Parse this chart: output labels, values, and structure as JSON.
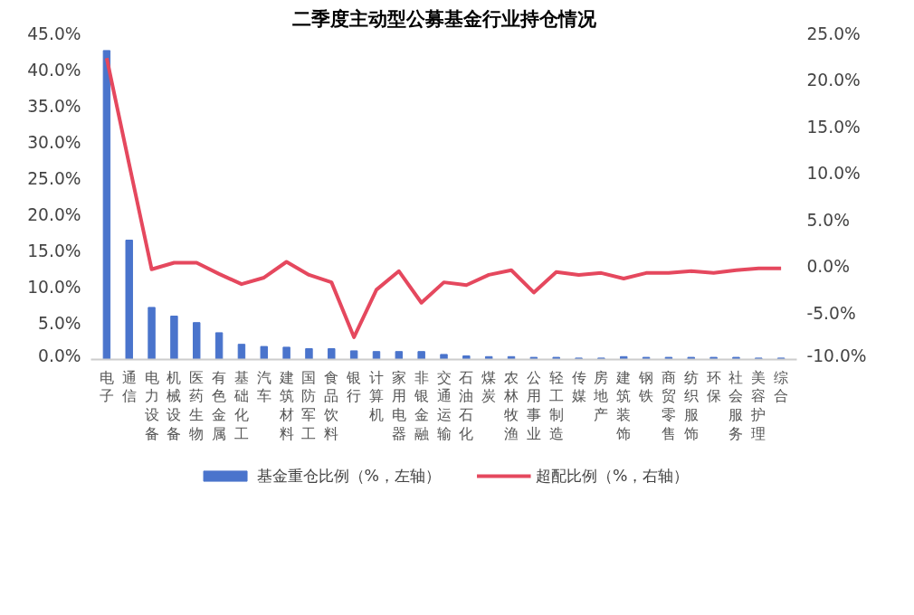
{
  "chart_data": {
    "type": "bar",
    "title": "二季度主动型公募基金行业持仓情况",
    "categories": [
      "电子",
      "通信",
      "电力设备",
      "机械设备",
      "医药生物",
      "有色金属",
      "基础化工",
      "汽车",
      "建筑材料",
      "国防军工",
      "食品饮料",
      "银行",
      "计算机",
      "家用电器",
      "非银金融",
      "交通运输",
      "石油石化",
      "煤炭",
      "农林牧渔",
      "公用事业",
      "轻工制造",
      "传媒",
      "房地产",
      "建筑装饰",
      "钢铁",
      "商贸零售",
      "纺织服饰",
      "环保",
      "社会服务",
      "美容护理",
      "综合"
    ],
    "series": [
      {
        "name": "基金重仓比例（%，左轴）",
        "color": "#4a74cc",
        "values": [
          42.7,
          16.5,
          7.2,
          6.0,
          5.1,
          3.7,
          2.1,
          1.8,
          1.7,
          1.5,
          1.5,
          1.2,
          1.1,
          1.1,
          1.1,
          0.7,
          0.5,
          0.4,
          0.4,
          0.3,
          0.3,
          0.2,
          0.2,
          0.4,
          0.3,
          0.3,
          0.3,
          0.3,
          0.3,
          0.2,
          0.2
        ]
      },
      {
        "name": "超配比例（%，右轴）",
        "type": "line",
        "axis": "y2",
        "color": "#e5485e",
        "values": [
          22.4,
          11.0,
          -0.3,
          0.4,
          0.4,
          -0.8,
          -1.9,
          -1.2,
          0.5,
          -0.9,
          -1.7,
          -7.6,
          -2.5,
          -0.5,
          -3.9,
          -1.7,
          -2.0,
          -0.9,
          -0.4,
          -2.8,
          -0.6,
          -0.9,
          -0.7,
          -1.3,
          -0.7,
          -0.7,
          -0.5,
          -0.7,
          -0.4,
          -0.2,
          -0.2
        ]
      }
    ],
    "ylim": [
      0,
      45
    ],
    "yticks": [
      {
        "value": 0,
        "label": "0.0%"
      },
      {
        "value": 5,
        "label": "5.0%"
      },
      {
        "value": 10,
        "label": "10.0%"
      },
      {
        "value": 15,
        "label": "15.0%"
      },
      {
        "value": 20,
        "label": "20.0%"
      },
      {
        "value": 25,
        "label": "25.0%"
      },
      {
        "value": 30,
        "label": "30.0%"
      },
      {
        "value": 35,
        "label": "35.0%"
      },
      {
        "value": 40,
        "label": "40.0%"
      },
      {
        "value": 45,
        "label": "45.0%"
      }
    ],
    "y2lim": [
      -10,
      25
    ],
    "y2ticks": [
      {
        "value": -10,
        "label": "-10.0%"
      },
      {
        "value": -5,
        "label": "-5.0%"
      },
      {
        "value": 0,
        "label": "0.0%"
      },
      {
        "value": 5,
        "label": "5.0%"
      },
      {
        "value": 10,
        "label": "10.0%"
      },
      {
        "value": 15,
        "label": "15.0%"
      },
      {
        "value": 20,
        "label": "20.0%"
      },
      {
        "value": 25,
        "label": "25.0%"
      }
    ],
    "grid": false,
    "legend": "bottom",
    "marker": "none",
    "line_style": "solid"
  }
}
